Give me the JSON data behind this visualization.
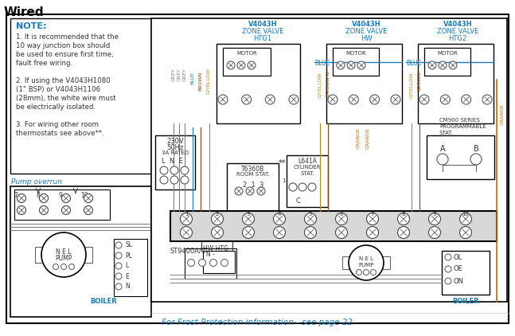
{
  "title": "Wired",
  "bg_color": "#ffffff",
  "note_color": "#1a7bb8",
  "note_title": "NOTE:",
  "note_lines": [
    "1. It is recommended that the",
    "10 way junction box should",
    "be used to ensure first time,",
    "fault free wiring.",
    "",
    "2. If using the V4043H1080",
    "(1\" BSP) or V4043H1106",
    "(28mm), the white wire must",
    "be electrically isolated.",
    "",
    "3. For wiring other room",
    "thermostats see above**."
  ],
  "pump_overrun_label": "Pump overrun",
  "frost_note": "For Frost Protection information - see page 22",
  "grey": "#808080",
  "blue": "#1a7bb8",
  "brown": "#8B4513",
  "gyellow": "#b8860b",
  "orange": "#cc6600",
  "dark": "#333333",
  "black": "#000000",
  "zv_labels": [
    "V4043H\nZONE VALVE\nHTG1",
    "V4043H\nZONE VALVE\nHW",
    "V4043H\nZONE VALVE\nHTG2"
  ]
}
